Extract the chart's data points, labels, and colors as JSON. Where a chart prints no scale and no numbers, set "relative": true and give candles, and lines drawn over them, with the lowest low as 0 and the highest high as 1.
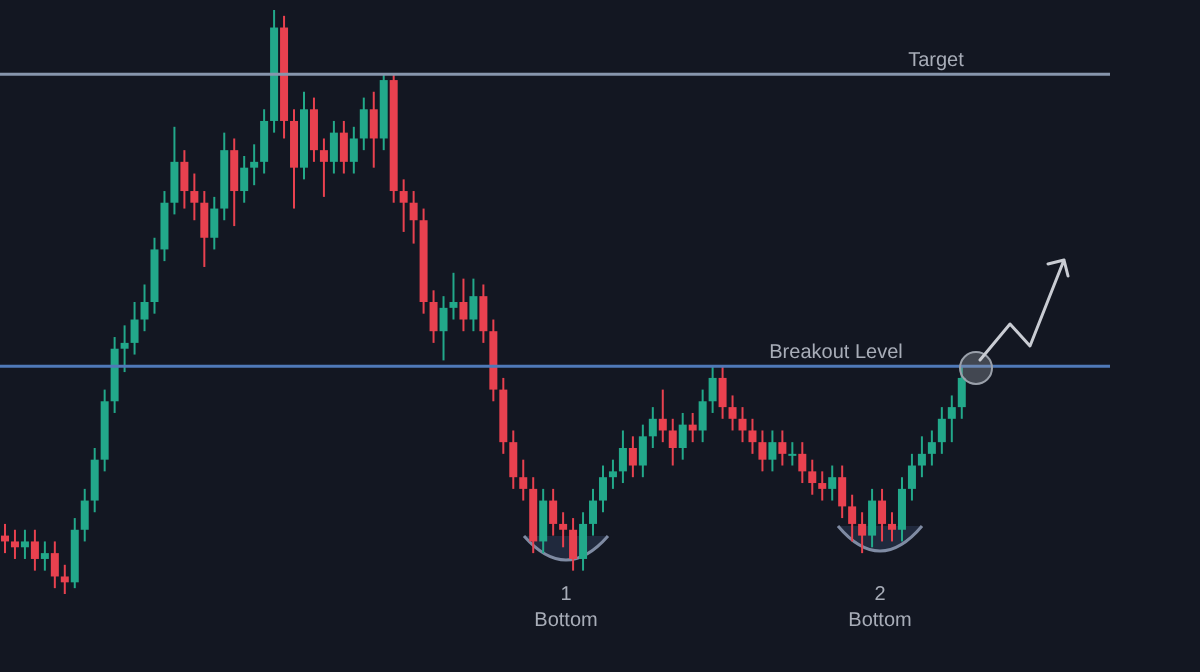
{
  "chart_data": {
    "type": "candlestick",
    "relative": true,
    "categories": [
      null,
      null,
      null,
      null,
      null,
      null,
      null,
      null,
      null,
      null,
      null,
      null,
      null,
      null,
      null,
      null,
      null,
      null,
      null,
      null,
      null,
      null,
      null,
      null,
      null,
      null,
      null,
      null,
      null,
      null,
      null,
      null,
      null,
      null,
      null,
      null,
      null,
      null,
      null,
      null,
      null,
      null,
      null,
      null,
      null,
      null,
      null,
      null,
      null,
      null,
      null,
      null,
      null,
      null,
      null,
      null,
      null,
      null,
      null,
      null,
      null,
      null,
      null,
      null,
      null,
      null,
      null,
      null,
      null,
      null,
      null,
      null,
      null,
      null,
      null,
      null,
      null,
      null,
      null,
      null,
      null,
      null,
      null,
      null,
      null,
      null,
      null,
      null,
      null,
      null,
      null,
      null,
      null,
      null,
      null,
      null,
      null
    ],
    "ohlc": [
      [
        0.1,
        0.12,
        0.07,
        0.09
      ],
      [
        0.09,
        0.11,
        0.06,
        0.08
      ],
      [
        0.08,
        0.11,
        0.06,
        0.09
      ],
      [
        0.09,
        0.11,
        0.04,
        0.06
      ],
      [
        0.06,
        0.09,
        0.04,
        0.07
      ],
      [
        0.07,
        0.09,
        0.01,
        0.03
      ],
      [
        0.03,
        0.05,
        0,
        0.02
      ],
      [
        0.02,
        0.13,
        0.01,
        0.11
      ],
      [
        0.11,
        0.18,
        0.09,
        0.16
      ],
      [
        0.16,
        0.25,
        0.14,
        0.23
      ],
      [
        0.23,
        0.35,
        0.21,
        0.33
      ],
      [
        0.33,
        0.44,
        0.31,
        0.42
      ],
      [
        0.42,
        0.46,
        0.38,
        0.43
      ],
      [
        0.43,
        0.5,
        0.41,
        0.47
      ],
      [
        0.47,
        0.53,
        0.45,
        0.5
      ],
      [
        0.5,
        0.61,
        0.48,
        0.59
      ],
      [
        0.59,
        0.69,
        0.57,
        0.67
      ],
      [
        0.67,
        0.8,
        0.65,
        0.74
      ],
      [
        0.74,
        0.76,
        0.66,
        0.69
      ],
      [
        0.69,
        0.72,
        0.64,
        0.67
      ],
      [
        0.67,
        0.69,
        0.56,
        0.61
      ],
      [
        0.61,
        0.68,
        0.59,
        0.66
      ],
      [
        0.66,
        0.79,
        0.64,
        0.76
      ],
      [
        0.76,
        0.78,
        0.63,
        0.69
      ],
      [
        0.69,
        0.75,
        0.67,
        0.73
      ],
      [
        0.73,
        0.77,
        0.7,
        0.74
      ],
      [
        0.74,
        0.83,
        0.72,
        0.81
      ],
      [
        0.81,
        1,
        0.79,
        0.97
      ],
      [
        0.97,
        0.99,
        0.78,
        0.81
      ],
      [
        0.81,
        0.83,
        0.66,
        0.73
      ],
      [
        0.73,
        0.86,
        0.71,
        0.83
      ],
      [
        0.83,
        0.85,
        0.74,
        0.76
      ],
      [
        0.76,
        0.78,
        0.68,
        0.74
      ],
      [
        0.74,
        0.81,
        0.72,
        0.79
      ],
      [
        0.79,
        0.81,
        0.72,
        0.74
      ],
      [
        0.74,
        0.8,
        0.72,
        0.78
      ],
      [
        0.78,
        0.85,
        0.76,
        0.83
      ],
      [
        0.83,
        0.86,
        0.73,
        0.78
      ],
      [
        0.78,
        0.89,
        0.76,
        0.88
      ],
      [
        0.88,
        0.89,
        0.67,
        0.69
      ],
      [
        0.69,
        0.71,
        0.62,
        0.67
      ],
      [
        0.67,
        0.69,
        0.6,
        0.64
      ],
      [
        0.64,
        0.66,
        0.48,
        0.5
      ],
      [
        0.5,
        0.52,
        0.43,
        0.45
      ],
      [
        0.45,
        0.51,
        0.4,
        0.49
      ],
      [
        0.49,
        0.55,
        0.47,
        0.5
      ],
      [
        0.5,
        0.54,
        0.45,
        0.47
      ],
      [
        0.47,
        0.54,
        0.45,
        0.51
      ],
      [
        0.51,
        0.53,
        0.43,
        0.45
      ],
      [
        0.45,
        0.47,
        0.33,
        0.35
      ],
      [
        0.35,
        0.37,
        0.24,
        0.26
      ],
      [
        0.26,
        0.28,
        0.18,
        0.2
      ],
      [
        0.2,
        0.23,
        0.16,
        0.18
      ],
      [
        0.18,
        0.2,
        0.07,
        0.09
      ],
      [
        0.09,
        0.18,
        0.07,
        0.16
      ],
      [
        0.16,
        0.18,
        0.1,
        0.12
      ],
      [
        0.12,
        0.14,
        0.08,
        0.11
      ],
      [
        0.11,
        0.13,
        0.04,
        0.06
      ],
      [
        0.06,
        0.14,
        0.04,
        0.12
      ],
      [
        0.12,
        0.18,
        0.1,
        0.16
      ],
      [
        0.16,
        0.22,
        0.14,
        0.2
      ],
      [
        0.2,
        0.23,
        0.18,
        0.21
      ],
      [
        0.21,
        0.28,
        0.19,
        0.25
      ],
      [
        0.25,
        0.27,
        0.2,
        0.22
      ],
      [
        0.22,
        0.29,
        0.2,
        0.27
      ],
      [
        0.27,
        0.32,
        0.25,
        0.3
      ],
      [
        0.3,
        0.35,
        0.26,
        0.28
      ],
      [
        0.28,
        0.3,
        0.22,
        0.25
      ],
      [
        0.25,
        0.31,
        0.23,
        0.29
      ],
      [
        0.29,
        0.31,
        0.26,
        0.28
      ],
      [
        0.28,
        0.35,
        0.26,
        0.33
      ],
      [
        0.33,
        0.39,
        0.31,
        0.37
      ],
      [
        0.37,
        0.39,
        0.3,
        0.32
      ],
      [
        0.32,
        0.34,
        0.28,
        0.3
      ],
      [
        0.3,
        0.32,
        0.26,
        0.28
      ],
      [
        0.28,
        0.3,
        0.24,
        0.26
      ],
      [
        0.26,
        0.28,
        0.21,
        0.23
      ],
      [
        0.23,
        0.28,
        0.21,
        0.26
      ],
      [
        0.26,
        0.28,
        0.22,
        0.24
      ],
      [
        0.24,
        0.26,
        0.22,
        0.24
      ],
      [
        0.24,
        0.26,
        0.19,
        0.21
      ],
      [
        0.21,
        0.23,
        0.17,
        0.19
      ],
      [
        0.19,
        0.21,
        0.16,
        0.18
      ],
      [
        0.18,
        0.22,
        0.16,
        0.2
      ],
      [
        0.2,
        0.22,
        0.13,
        0.15
      ],
      [
        0.15,
        0.17,
        0.09,
        0.12
      ],
      [
        0.12,
        0.14,
        0.07,
        0.1
      ],
      [
        0.1,
        0.18,
        0.08,
        0.16
      ],
      [
        0.16,
        0.18,
        0.09,
        0.12
      ],
      [
        0.12,
        0.14,
        0.09,
        0.11
      ],
      [
        0.11,
        0.2,
        0.09,
        0.18
      ],
      [
        0.18,
        0.24,
        0.16,
        0.22
      ],
      [
        0.22,
        0.27,
        0.2,
        0.24
      ],
      [
        0.24,
        0.28,
        0.22,
        0.26
      ],
      [
        0.26,
        0.32,
        0.24,
        0.3
      ],
      [
        0.3,
        0.34,
        0.26,
        0.32
      ],
      [
        0.32,
        0.39,
        0.3,
        0.37
      ]
    ],
    "ref_lines": [
      {
        "axis": "y",
        "value": 0.89,
        "label": "Target",
        "color": "#8796ad"
      },
      {
        "axis": "y",
        "value": 0.39,
        "label": "Breakout Level",
        "color": "#4f79b8"
      }
    ],
    "annotations": [
      "1",
      "Bottom",
      "2",
      "Bottom"
    ]
  }
}
